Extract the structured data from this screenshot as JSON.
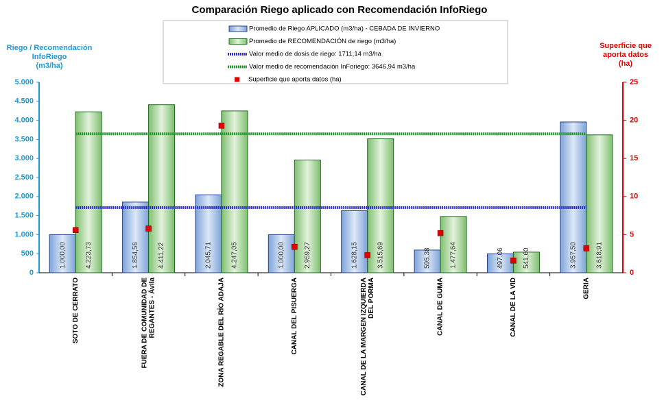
{
  "chart_data": {
    "type": "bar",
    "title": "Comparación Riego aplicado con Recomendación InfoRiego",
    "ylabel": [
      "Riego / Recomendación",
      "InfoRiego",
      "(m3/ha)"
    ],
    "y2label": [
      "Superficie que",
      "aporta datos",
      "(ha)"
    ],
    "categories": [
      [
        "SOTO DE CERRATO"
      ],
      [
        "FUERA DE COMUNIDAD DE",
        "REGANTES - Ávila"
      ],
      [
        "ZONA REGABLE DEL RÍO ADAJA"
      ],
      [
        "CANAL DEL PISUERGA"
      ],
      [
        "CANAL DE LA MARGEN IZQUIERDA",
        "DEL PORMA"
      ],
      [
        "CANAL DE GUMA"
      ],
      [
        "CANAL DE LA VID"
      ],
      [
        "GERIA"
      ]
    ],
    "ylim": [
      0,
      5000
    ],
    "yticks": [
      {
        "value": 0,
        "label": "0"
      },
      {
        "value": 500,
        "label": "500"
      },
      {
        "value": 1000,
        "label": "1.000"
      },
      {
        "value": 1500,
        "label": "1.500"
      },
      {
        "value": 2000,
        "label": "2.000"
      },
      {
        "value": 2500,
        "label": "2.500"
      },
      {
        "value": 3000,
        "label": "3.000"
      },
      {
        "value": 3500,
        "label": "3.500"
      },
      {
        "value": 4000,
        "label": "4.000"
      },
      {
        "value": 4500,
        "label": "4.500"
      },
      {
        "value": 5000,
        "label": "5.000"
      }
    ],
    "y2lim": [
      0,
      25
    ],
    "y2ticks": [
      0,
      5,
      10,
      15,
      20,
      25
    ],
    "series": [
      {
        "name": "Promedio de Riego APLICADO (m3/ha) - CEBADA DE INVIERNO",
        "kind": "bar",
        "color": "#8db0e0",
        "values": [
          1000,
          1854.56,
          2045.71,
          1000,
          1628.15,
          595.38,
          497.06,
          3957.5
        ],
        "value_labels": [
          "1.000,00",
          "1.854,56",
          "2.045,71",
          "1.000,00",
          "1.628,15",
          "595,38",
          "497,06",
          "3.957,50"
        ]
      },
      {
        "name": "Promedio de RECOMENDACIÓN de riego (m3/ha)",
        "kind": "bar",
        "color": "#8cc67e",
        "values": [
          4223.73,
          4411.22,
          4247.05,
          2959.27,
          3515.69,
          1477.64,
          541.6,
          3618.91
        ],
        "value_labels": [
          "4.223,73",
          "4.411,22",
          "4.247,05",
          "2.959,27",
          "3.515,69",
          "1.477,64",
          "541,60",
          "3.618,91"
        ]
      },
      {
        "name": "Valor medio de dosis de riego: 1711,14 m3/ha",
        "kind": "mean",
        "color": "#2a2adf",
        "value": 1711.14
      },
      {
        "name": "Valor medio de recomendación InForiego: 3646,94 m3/ha",
        "kind": "mean",
        "color": "#1f9a2a",
        "value": 3646.94
      },
      {
        "name": "Superficie que aporta datos (ha)",
        "kind": "marker",
        "axis": "y2",
        "color": "#e00000",
        "values": [
          5.6,
          5.8,
          19.3,
          3.4,
          2.3,
          5.2,
          1.6,
          3.2
        ]
      }
    ]
  }
}
